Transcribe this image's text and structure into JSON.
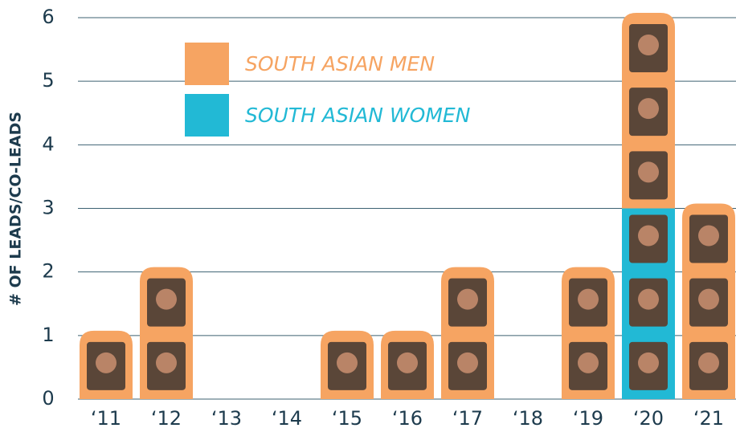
{
  "chart_data": {
    "type": "stacked_bar",
    "y_label": "# OF LEADS/CO-LEADS",
    "categories": [
      "‘11",
      "‘12",
      "‘13",
      "‘14",
      "‘15",
      "‘16",
      "‘17",
      "‘18",
      "‘19",
      "‘20",
      "‘21"
    ],
    "series": [
      {
        "name": "SOUTH ASIAN WOMEN",
        "color": "#22b9d5",
        "values": [
          0,
          0,
          0,
          0,
          0,
          0,
          0,
          0,
          0,
          3,
          0
        ]
      },
      {
        "name": "SOUTH ASIAN MEN",
        "color": "#f6a462",
        "values": [
          1,
          2,
          0,
          0,
          1,
          1,
          2,
          0,
          2,
          3,
          3
        ]
      }
    ],
    "ylim": [
      0,
      6
    ],
    "yticks": [
      0,
      1,
      2,
      3,
      4,
      5,
      6
    ],
    "grid": true
  }
}
